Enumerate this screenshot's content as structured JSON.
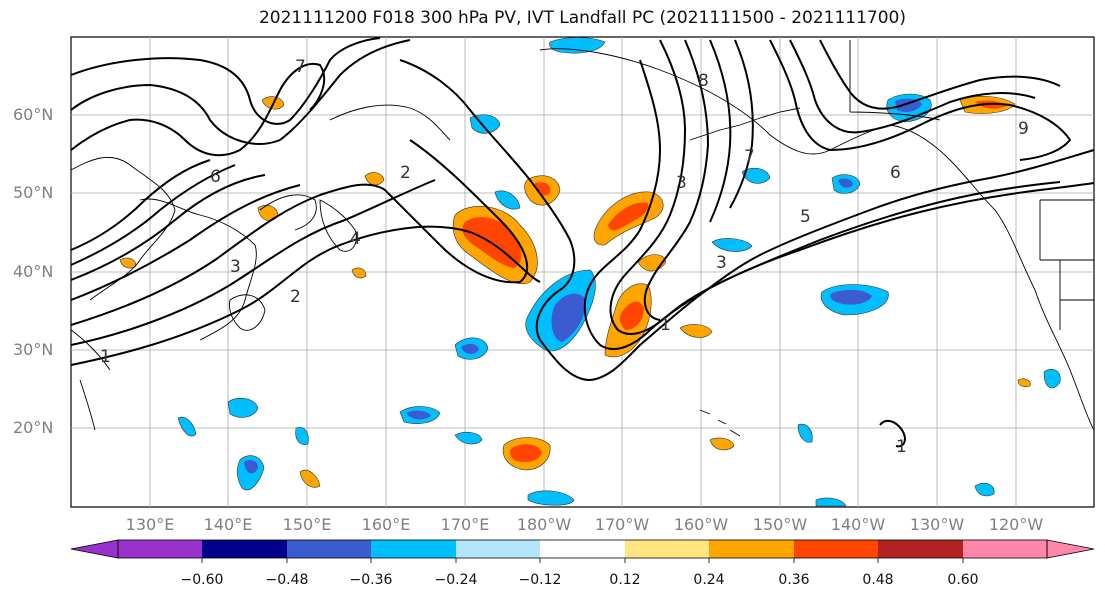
{
  "title": "2021111200 F018 300 hPa PV, IVT Landfall PC (2021111500 - 2021111700)",
  "lat_labels": [
    "60°N",
    "50°N",
    "40°N",
    "30°N",
    "20°N"
  ],
  "lon_labels": [
    "130°E",
    "140°E",
    "150°E",
    "160°E",
    "170°E",
    "180°W",
    "170°W",
    "160°W",
    "150°W",
    "140°W",
    "130°W",
    "120°W"
  ],
  "contour_labels": [
    "1",
    "2",
    "3",
    "4",
    "5",
    "6",
    "7",
    "8",
    "9"
  ],
  "colorbar": {
    "ticks": [
      "−0.60",
      "−0.48",
      "−0.36",
      "−0.24",
      "−0.12",
      "0.12",
      "0.24",
      "0.36",
      "0.48",
      "0.60"
    ],
    "colors": [
      "#9932cc",
      "#00008b",
      "#3b5bd0",
      "#00bfff",
      "#b3e5fc",
      "#ffffff",
      "#ffe680",
      "#ffa500",
      "#ff4500",
      "#b22222",
      "#ff88aa"
    ]
  }
}
